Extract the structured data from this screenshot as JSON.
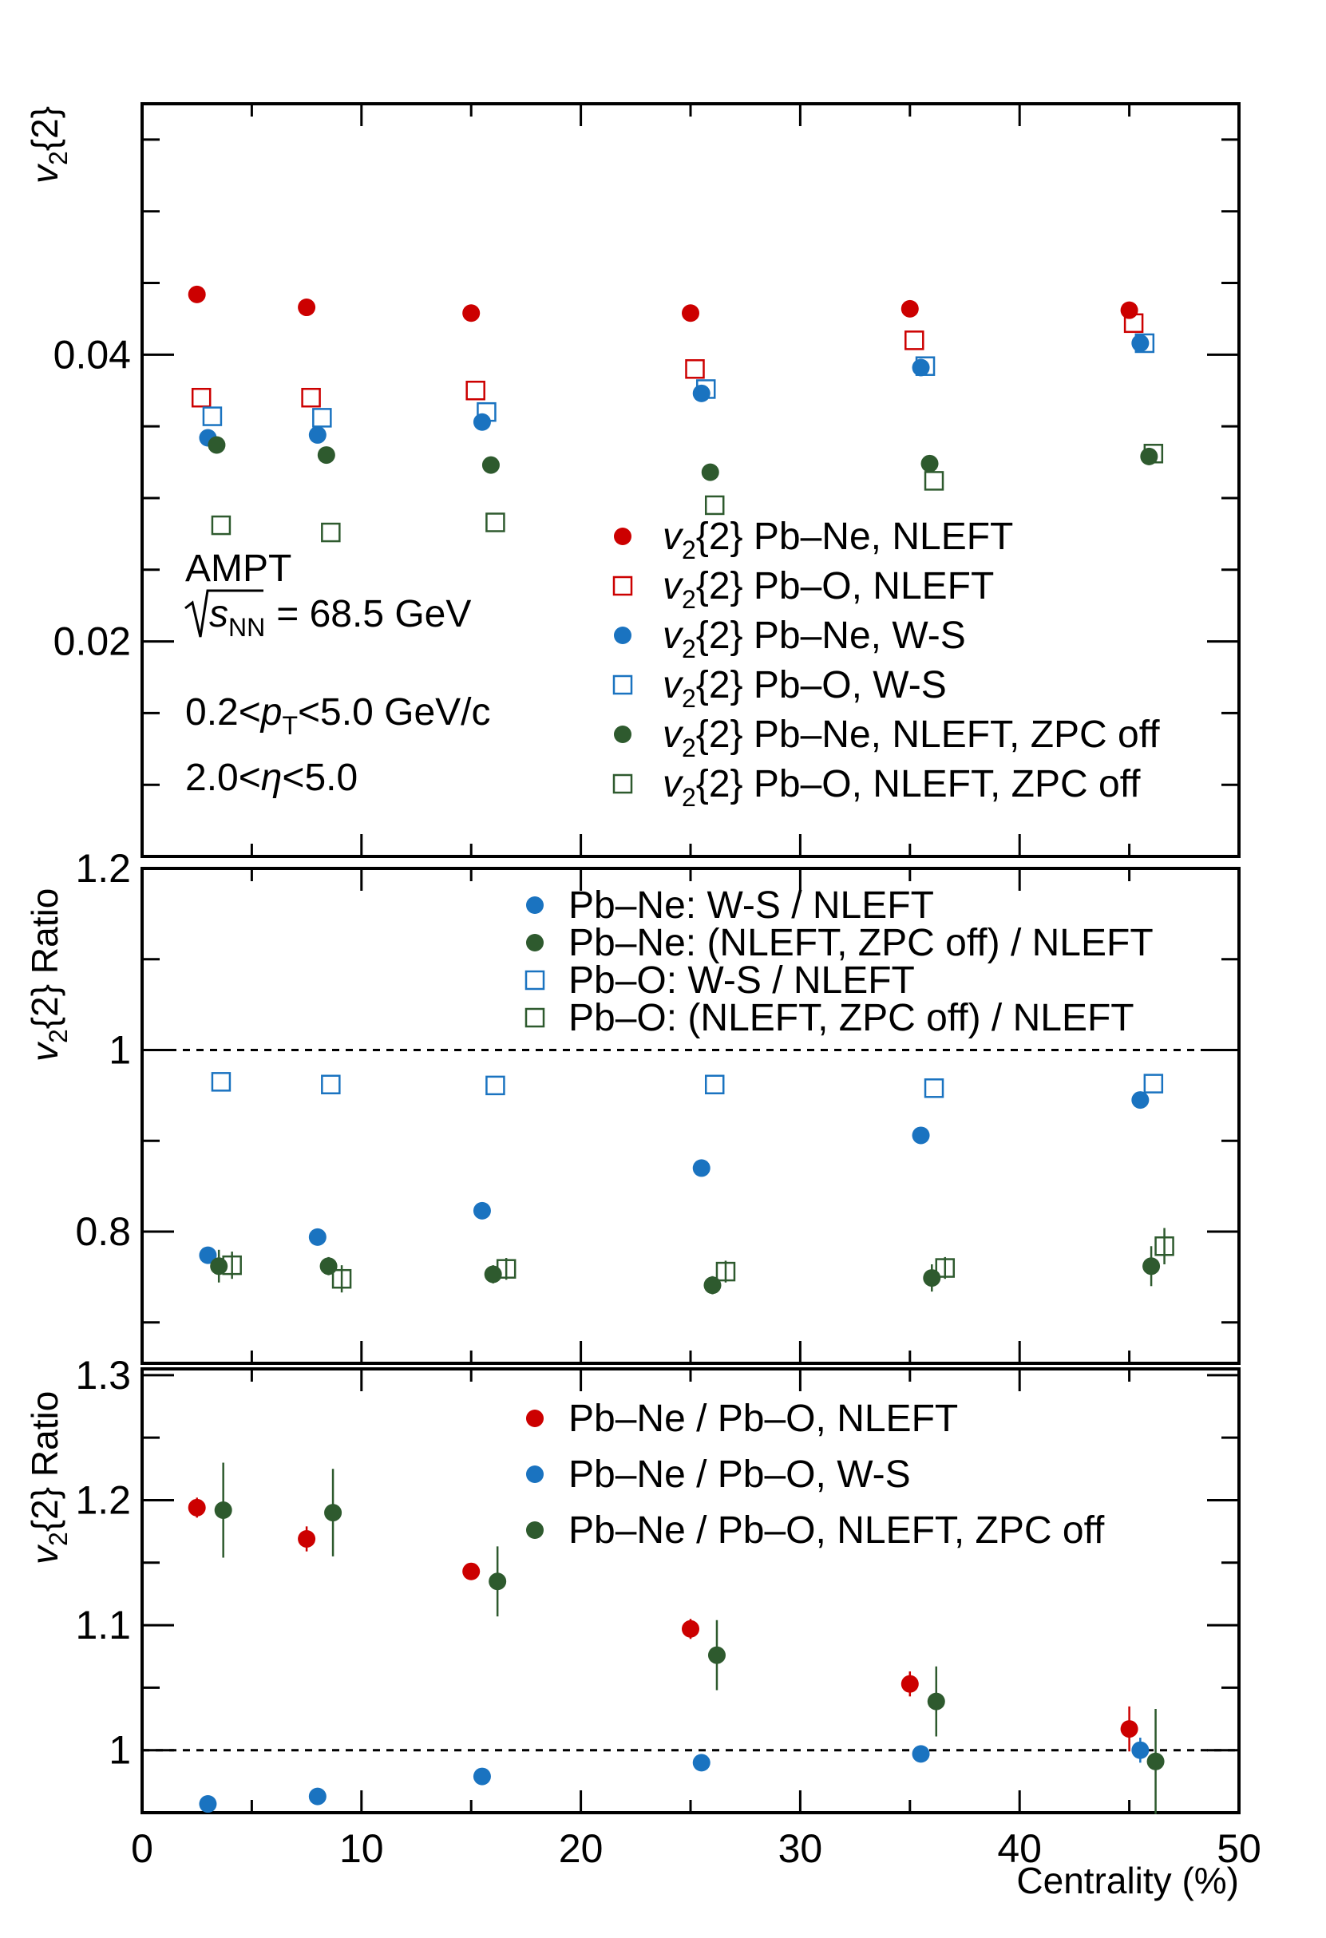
{
  "chart_data": [
    {
      "panel": "top",
      "type": "scatter",
      "ylabel": "v2{2}",
      "ylim": [
        0.005,
        0.0575
      ],
      "xlim": [
        0,
        50
      ],
      "yticks": [
        0.02,
        0.04
      ],
      "ytick_labels": [
        "0.02",
        "0.04"
      ],
      "annotation": {
        "generator": "AMPT",
        "energy_sym": "s",
        "energy_sub": "NN",
        "energy_val": "= 68.5 GeV",
        "pt_prefix": "0.2<",
        "pt_sym": "p",
        "pt_sub": "T",
        "pt_suffix": "<5.0 GeV/c",
        "eta_prefix": "2.0<",
        "eta_sym": "η",
        "eta_suffix": "<5.0"
      },
      "legend_position": "bottom-right",
      "series": [
        {
          "name": "v2{2} Pb–Ne, NLEFT",
          "label_rest": "{2} Pb–Ne, NLEFT",
          "marker": "filled-circle",
          "color": "#cc0000",
          "x": [
            2.5,
            7.5,
            15,
            25,
            35,
            45
          ],
          "y": [
            0.0442,
            0.0433,
            0.0429,
            0.0429,
            0.0432,
            0.0431
          ],
          "err": [
            0,
            0,
            0,
            0,
            0,
            0
          ]
        },
        {
          "name": "v2{2} Pb–O, NLEFT",
          "label_rest": "{2} Pb–O, NLEFT",
          "marker": "open-square",
          "color": "#cc0000",
          "x": [
            2.7,
            7.7,
            15.2,
            25.2,
            35.2,
            45.2
          ],
          "y": [
            0.037,
            0.037,
            0.0375,
            0.039,
            0.041,
            0.0422
          ],
          "err": [
            0,
            0,
            0,
            0,
            0,
            0
          ]
        },
        {
          "name": "v2{2} Pb–Ne, W-S",
          "label_rest": "{2} Pb–Ne, W-S",
          "marker": "filled-circle",
          "color": "#1a73c0",
          "x": [
            3,
            8,
            15.5,
            25.5,
            35.5,
            45.5
          ],
          "y": [
            0.0342,
            0.0344,
            0.0353,
            0.0373,
            0.0391,
            0.0408
          ],
          "err": [
            0,
            0,
            0,
            0,
            0,
            0
          ]
        },
        {
          "name": "v2{2} Pb–O, W-S",
          "label_rest": "{2} Pb–O, W-S",
          "marker": "open-square",
          "color": "#1a73c0",
          "x": [
            3.2,
            8.2,
            15.7,
            25.7,
            35.7,
            45.7
          ],
          "y": [
            0.0357,
            0.0356,
            0.036,
            0.0376,
            0.0392,
            0.0408
          ],
          "err": [
            0,
            0,
            0,
            0,
            0,
            0
          ]
        },
        {
          "name": "v2{2} Pb–Ne, NLEFT, ZPC off",
          "label_rest": "{2} Pb–Ne, NLEFT, ZPC off",
          "marker": "filled-circle",
          "color": "#2e5a2e",
          "x": [
            3.4,
            8.4,
            15.9,
            25.9,
            35.9,
            45.9
          ],
          "y": [
            0.0337,
            0.033,
            0.0323,
            0.0318,
            0.0324,
            0.0329
          ],
          "err": [
            0.0005,
            0.0003,
            0.0003,
            0.0003,
            0.0005,
            0.0006
          ]
        },
        {
          "name": "v2{2} Pb–O, NLEFT, ZPC off",
          "label_rest": "{2} Pb–O, NLEFT, ZPC off",
          "marker": "open-square",
          "color": "#2e5a2e",
          "x": [
            3.6,
            8.6,
            16.1,
            26.1,
            36.1,
            46.1
          ],
          "y": [
            0.0281,
            0.0276,
            0.0283,
            0.0295,
            0.0312,
            0.0331
          ],
          "err": [
            0,
            0,
            0,
            0,
            0,
            0
          ]
        }
      ]
    },
    {
      "panel": "middle",
      "type": "scatter",
      "ylabel": "v2{2} Ratio",
      "ylim": [
        0.655,
        1.2
      ],
      "xlim": [
        0,
        50
      ],
      "yticks": [
        0.8,
        1.0,
        1.2
      ],
      "ytick_labels": [
        "0.8",
        "1",
        "1.2"
      ],
      "reference_line": 1.0,
      "legend_position": "top",
      "series": [
        {
          "name": "Pb–Ne: W-S / NLEFT",
          "marker": "filled-circle",
          "color": "#1a73c0",
          "x": [
            3,
            8,
            15.5,
            25.5,
            35.5,
            45.5
          ],
          "y": [
            0.774,
            0.794,
            0.823,
            0.87,
            0.906,
            0.945
          ],
          "err": [
            0,
            0,
            0,
            0,
            0,
            0
          ]
        },
        {
          "name": "Pb–Ne: (NLEFT, ZPC off) / NLEFT",
          "marker": "filled-circle",
          "color": "#2e5a2e",
          "x": [
            3.5,
            8.5,
            16,
            26,
            36,
            46
          ],
          "y": [
            0.762,
            0.762,
            0.753,
            0.741,
            0.749,
            0.762
          ],
          "err": [
            0.018,
            0.01,
            0.01,
            0.01,
            0.015,
            0.022
          ]
        },
        {
          "name": "Pb–O: W-S / NLEFT",
          "marker": "open-square",
          "color": "#1a73c0",
          "x": [
            3.6,
            8.6,
            16.1,
            26.1,
            36.1,
            46.1
          ],
          "y": [
            0.965,
            0.962,
            0.961,
            0.962,
            0.958,
            0.963
          ],
          "err": [
            0,
            0,
            0,
            0,
            0,
            0
          ]
        },
        {
          "name": "Pb–O: (NLEFT, ZPC off) / NLEFT",
          "marker": "open-square",
          "color": "#2e5a2e",
          "x": [
            4.1,
            9.1,
            16.6,
            26.6,
            36.6,
            46.6
          ],
          "y": [
            0.763,
            0.748,
            0.759,
            0.756,
            0.76,
            0.784
          ],
          "err": [
            0.015,
            0.015,
            0.012,
            0.012,
            0.012,
            0.02
          ]
        }
      ]
    },
    {
      "panel": "bottom",
      "type": "scatter",
      "ylabel": "v2{2} Ratio",
      "xlabel": "Centrality (%)",
      "ylim": [
        0.95,
        1.305
      ],
      "xlim": [
        0,
        50
      ],
      "yticks": [
        1.0,
        1.1,
        1.2,
        1.3
      ],
      "ytick_labels": [
        "1",
        "1.1",
        "1.2",
        "1.3"
      ],
      "xticks": [
        0,
        10,
        20,
        30,
        40,
        50
      ],
      "xtick_labels": [
        "0",
        "10",
        "20",
        "30",
        "40",
        "50"
      ],
      "reference_line": 1.0,
      "legend_position": "top-right",
      "series": [
        {
          "name": "Pb–Ne / Pb–O, NLEFT",
          "marker": "filled-circle",
          "color": "#cc0000",
          "x": [
            2.5,
            7.5,
            15,
            25,
            35,
            45
          ],
          "y": [
            1.194,
            1.169,
            1.143,
            1.097,
            1.053,
            1.017
          ],
          "err": [
            0.008,
            0.01,
            0.005,
            0.008,
            0.01,
            0.018
          ]
        },
        {
          "name": "Pb–Ne / Pb–O, W-S",
          "marker": "filled-circle",
          "color": "#1a73c0",
          "x": [
            3,
            8,
            15.5,
            25.5,
            35.5,
            45.5
          ],
          "y": [
            0.957,
            0.963,
            0.979,
            0.99,
            0.997,
            1.0
          ],
          "err": [
            0,
            0,
            0,
            0.006,
            0,
            0.01
          ]
        },
        {
          "name": "Pb–Ne / Pb–O, NLEFT, ZPC off",
          "marker": "filled-circle",
          "color": "#2e5a2e",
          "x": [
            3.7,
            8.7,
            16.2,
            26.2,
            36.2,
            46.2
          ],
          "y": [
            1.192,
            1.19,
            1.135,
            1.076,
            1.039,
            0.991
          ],
          "err": [
            0.038,
            0.035,
            0.028,
            0.028,
            0.028,
            0.042
          ]
        }
      ]
    }
  ]
}
